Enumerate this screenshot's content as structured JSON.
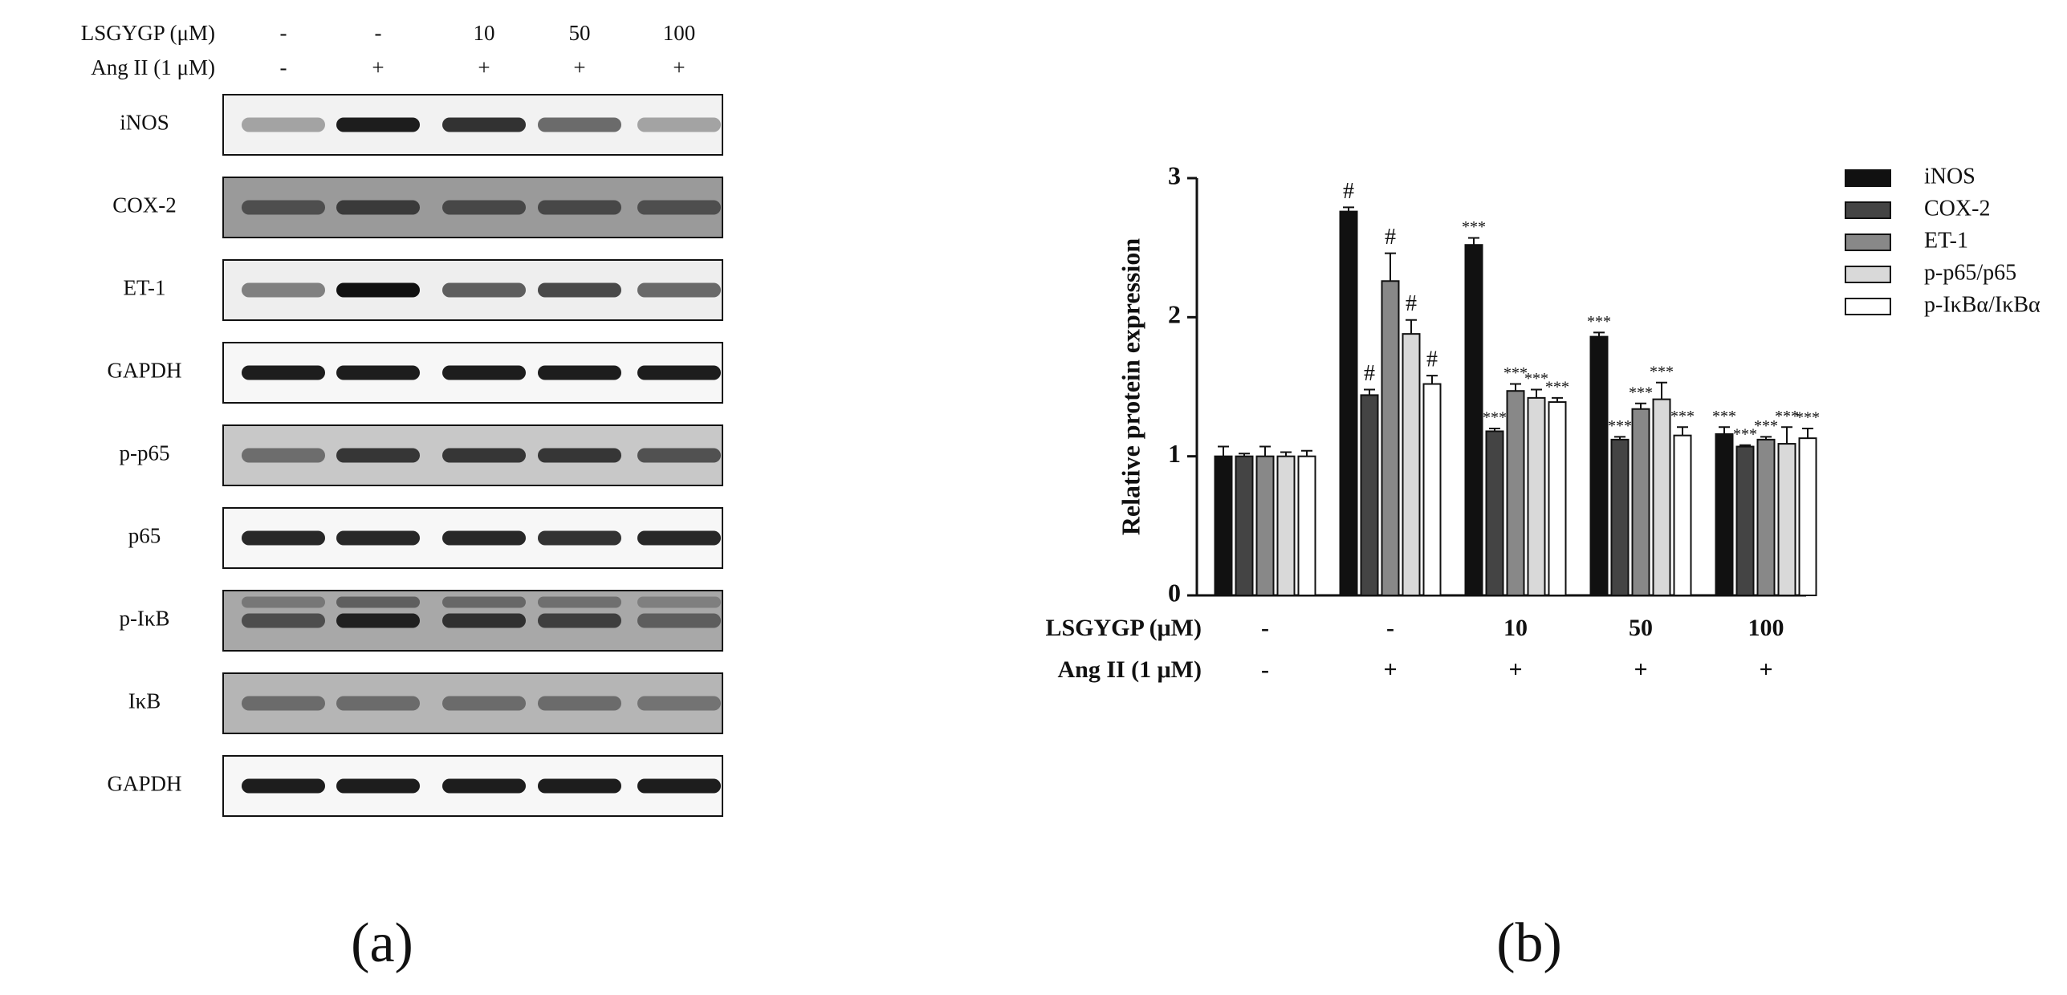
{
  "blot": {
    "header": [
      {
        "label": "LSGYGP (μM)",
        "values": [
          "-",
          "-",
          "10",
          "50",
          "100"
        ]
      },
      {
        "label": "Ang II (1 μM)",
        "values": [
          "-",
          "+",
          "+",
          "+",
          "+"
        ]
      }
    ],
    "rows": [
      "iNOS",
      "COX-2",
      "ET-1",
      "GAPDH",
      "p-p65",
      "p65",
      "p-IκB",
      "IκB",
      "GAPDH"
    ],
    "panel_label": "(a)"
  },
  "chart_data": {
    "type": "bar",
    "ylabel": "Relative protein expression",
    "panel_label": "(b)",
    "x_table": [
      {
        "label": "LSGYGP (μM)",
        "values": [
          "-",
          "-",
          "10",
          "50",
          "100"
        ]
      },
      {
        "label": "Ang II (1 μM)",
        "values": [
          "-",
          "+",
          "+",
          "+",
          "+"
        ]
      }
    ],
    "ylim": [
      0,
      3
    ],
    "yticks": [
      0,
      1,
      2,
      3
    ],
    "series": [
      {
        "name": "iNOS",
        "color": "#111111",
        "values": [
          1.0,
          2.76,
          2.52,
          1.86,
          1.16
        ],
        "errors": [
          0.07,
          0.03,
          0.05,
          0.03,
          0.05
        ],
        "labels": [
          null,
          "#",
          "***",
          "***",
          "***"
        ]
      },
      {
        "name": "COX-2",
        "color": "#444444",
        "values": [
          1.0,
          1.44,
          1.18,
          1.12,
          1.07
        ],
        "errors": [
          0.02,
          0.04,
          0.02,
          0.02,
          0.01
        ],
        "labels": [
          null,
          "#",
          "***",
          "***",
          "***"
        ]
      },
      {
        "name": "ET-1",
        "color": "#888888",
        "values": [
          1.0,
          2.26,
          1.47,
          1.34,
          1.12
        ],
        "errors": [
          0.07,
          0.2,
          0.05,
          0.04,
          0.02
        ],
        "labels": [
          null,
          "#",
          "***",
          "***",
          "***"
        ]
      },
      {
        "name": "p-p65/p65",
        "color": "#d9d9d9",
        "values": [
          1.0,
          1.88,
          1.42,
          1.41,
          1.09
        ],
        "errors": [
          0.03,
          0.1,
          0.06,
          0.12,
          0.12
        ],
        "labels": [
          null,
          "#",
          "***",
          "***",
          "***"
        ]
      },
      {
        "name": "p-IκBα/IκBα",
        "color": "#ffffff",
        "values": [
          1.0,
          1.52,
          1.39,
          1.15,
          1.13
        ],
        "errors": [
          0.04,
          0.06,
          0.03,
          0.06,
          0.07
        ],
        "labels": [
          null,
          "#",
          "***",
          "***",
          "***"
        ]
      }
    ]
  }
}
